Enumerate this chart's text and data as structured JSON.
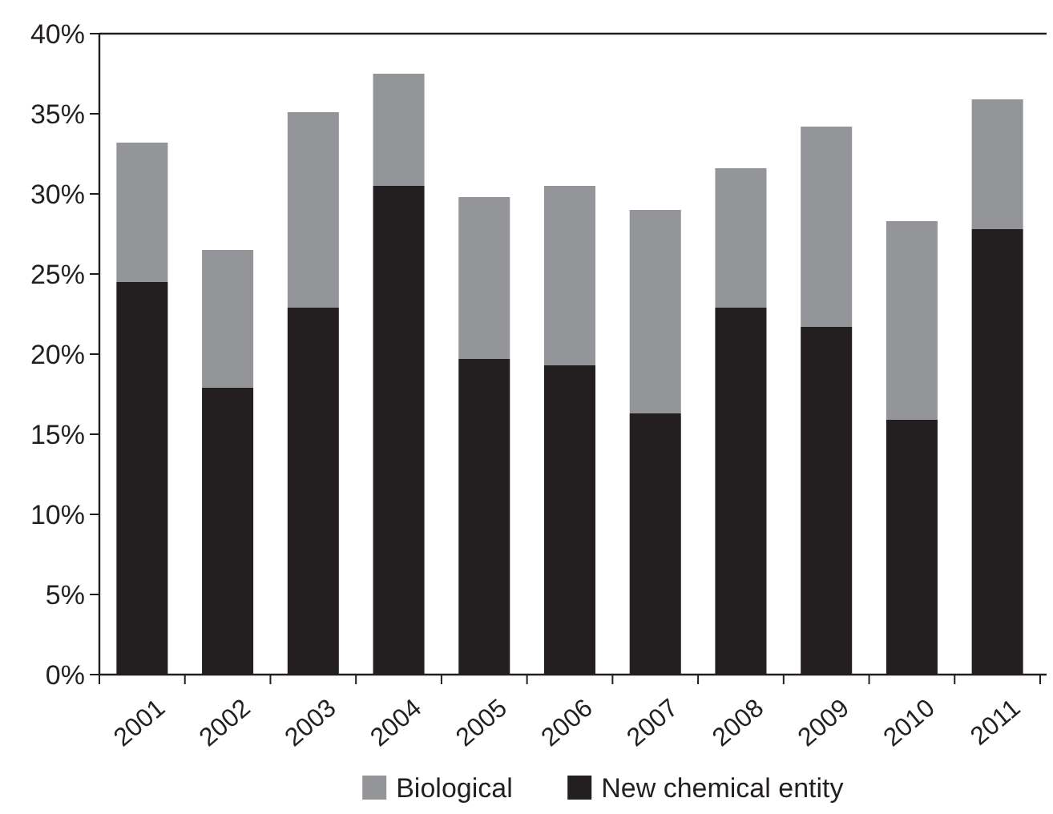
{
  "chart_data": {
    "type": "bar",
    "stacked": true,
    "categories": [
      "2001",
      "2002",
      "2003",
      "2004",
      "2005",
      "2006",
      "2007",
      "2008",
      "2009",
      "2010",
      "2011"
    ],
    "series": [
      {
        "name": "New chemical entity",
        "color": "#231f20",
        "values": [
          24.5,
          17.9,
          22.9,
          30.5,
          19.7,
          19.3,
          16.3,
          22.9,
          21.7,
          15.9,
          27.8
        ]
      },
      {
        "name": "Biological",
        "color": "#939598",
        "values": [
          8.7,
          8.6,
          12.2,
          7.0,
          10.1,
          11.2,
          12.7,
          8.7,
          12.5,
          12.4,
          8.1
        ]
      }
    ],
    "ylim": [
      0,
      40
    ],
    "yticks": [
      {
        "value": 0,
        "label": "0%"
      },
      {
        "value": 5,
        "label": "5%"
      },
      {
        "value": 10,
        "label": "10%"
      },
      {
        "value": 15,
        "label": "15%"
      },
      {
        "value": 20,
        "label": "20%"
      },
      {
        "value": 25,
        "label": "25%"
      },
      {
        "value": 30,
        "label": "30%"
      },
      {
        "value": 35,
        "label": "35%"
      },
      {
        "value": 40,
        "label": "40%"
      }
    ],
    "grid": false,
    "legend": "bottom"
  }
}
